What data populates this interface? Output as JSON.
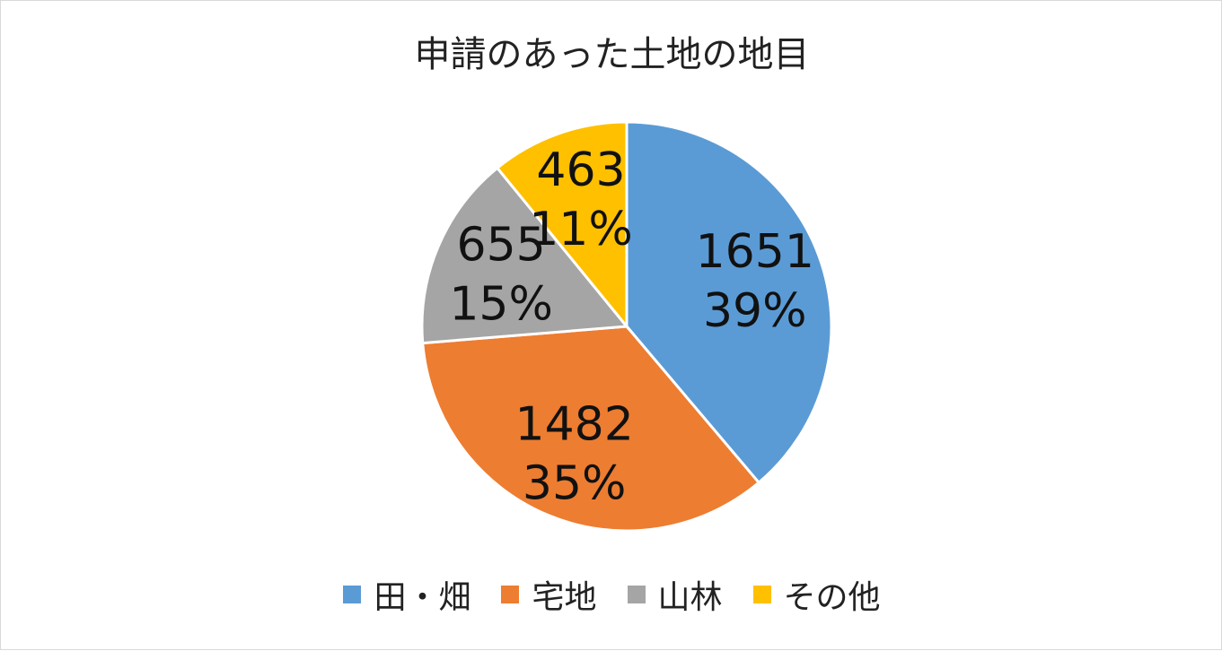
{
  "chart_data": {
    "type": "pie",
    "title": "申請のあった土地の地目",
    "categories": [
      "田・畑",
      "宅地",
      "山林",
      "その他"
    ],
    "values": [
      1651,
      1482,
      655,
      463
    ],
    "percent_labels": [
      "39%",
      "35%",
      "15%",
      "11%"
    ],
    "value_labels": [
      "1651",
      "1482",
      "655",
      "463"
    ],
    "colors": [
      "#5b9bd5",
      "#ed7d31",
      "#a5a5a5",
      "#ffc000"
    ],
    "legend_position": "bottom",
    "start_angle": "top, clockwise"
  }
}
